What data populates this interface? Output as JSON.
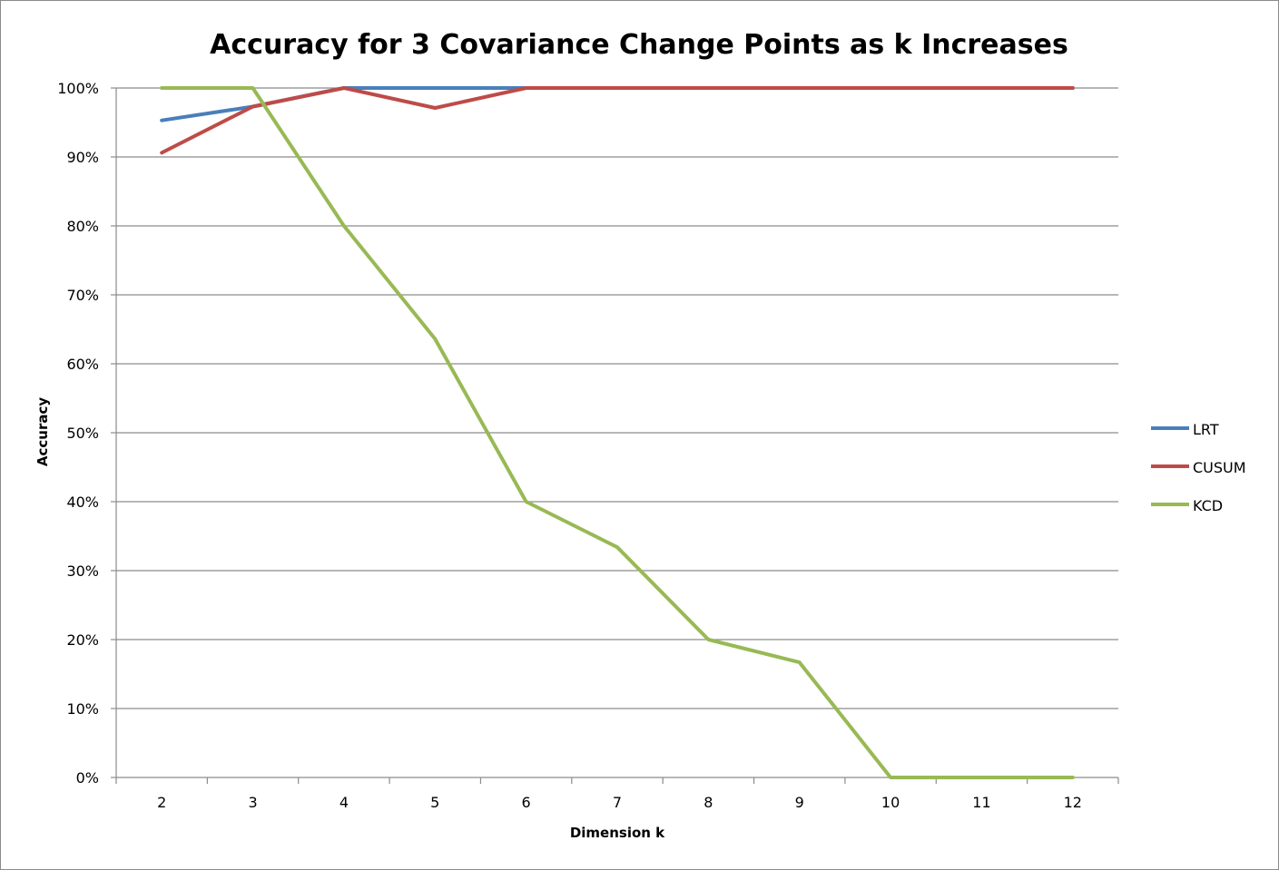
{
  "chart_data": {
    "type": "line",
    "title": "Accuracy for 3 Covariance Change Points as k Increases",
    "xlabel": "Dimension k",
    "ylabel": "Accuracy",
    "categories": [
      "2",
      "3",
      "4",
      "5",
      "6",
      "7",
      "8",
      "9",
      "10",
      "11",
      "12"
    ],
    "ylim": [
      0,
      100
    ],
    "yticks": [
      "0%",
      "10%",
      "20%",
      "30%",
      "40%",
      "50%",
      "60%",
      "70%",
      "80%",
      "90%",
      "100%"
    ],
    "grid": "horizontal",
    "legend_position": "right",
    "series": [
      {
        "name": "LRT",
        "color": "#4a7ebb",
        "values": [
          95.3,
          97.3,
          100,
          100,
          100,
          100,
          100,
          100,
          100,
          100,
          100
        ]
      },
      {
        "name": "CUSUM",
        "color": "#be4b48",
        "values": [
          90.6,
          97.3,
          100,
          97.1,
          100,
          100,
          100,
          100,
          100,
          100,
          100
        ]
      },
      {
        "name": "KCD",
        "color": "#98b954",
        "values": [
          100,
          100,
          80,
          63.6,
          40,
          33.4,
          20,
          16.7,
          0,
          0,
          0
        ]
      }
    ]
  }
}
